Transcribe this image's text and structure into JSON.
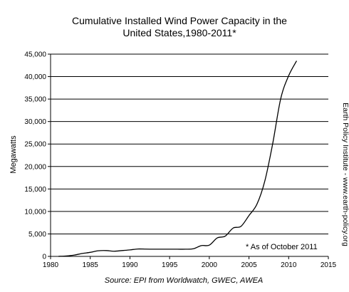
{
  "chart_data": {
    "type": "line",
    "title": "Cumulative Installed Wind Power Capacity in the United States,1980-2011*",
    "title_lines": [
      "Cumulative Installed Wind Power Capacity in the",
      "United States,1980-2011*"
    ],
    "xlabel": "",
    "ylabel": "Megawatts",
    "xlim": [
      1980,
      2015
    ],
    "ylim": [
      0,
      45000
    ],
    "x_ticks": [
      1980,
      1985,
      1990,
      1995,
      2000,
      2005,
      2010,
      2015
    ],
    "y_ticks": [
      0,
      5000,
      10000,
      15000,
      20000,
      25000,
      30000,
      35000,
      40000,
      45000
    ],
    "y_tick_labels": [
      "0",
      "5,000",
      "10,000",
      "15,000",
      "20,000",
      "25,000",
      "30,000",
      "35,000",
      "40,000",
      "45,000"
    ],
    "grid": "horizontal",
    "line_color": "#000000",
    "series": [
      {
        "x": [
          1981,
          1982,
          1983,
          1984,
          1985,
          1986,
          1987,
          1988,
          1989,
          1990,
          1991,
          1992,
          1993,
          1994,
          1995,
          1996,
          1997,
          1998,
          1999,
          2000,
          2001,
          2002,
          2003,
          2004,
          2005,
          2006,
          2007,
          2008,
          2009,
          2010,
          2011
        ],
        "y": [
          10,
          100,
          300,
          650,
          900,
          1250,
          1300,
          1150,
          1300,
          1450,
          1650,
          1620,
          1600,
          1600,
          1600,
          1600,
          1600,
          1700,
          2400,
          2500,
          4100,
          4500,
          6300,
          6700,
          9100,
          11600,
          16800,
          25200,
          35100,
          40200,
          43500
        ]
      }
    ],
    "annotation": "* As of October 2011",
    "source": "Source: EPI from Worldwatch, GWEC, AWEA",
    "side_credit": "Earth Policy Institute - www.earth-policy.org"
  }
}
